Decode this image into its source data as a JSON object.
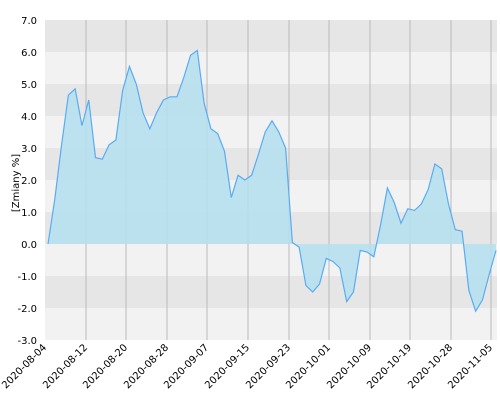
{
  "chart_data": {
    "type": "area",
    "title": "",
    "xlabel": "",
    "ylabel": "[Zmiany %]",
    "ylim": [
      -3.0,
      7.0
    ],
    "grid": true,
    "y_ticks": [
      "7.0",
      "6.0",
      "5.0",
      "4.0",
      "3.0",
      "2.0",
      "1.0",
      "0.0",
      "-1.0",
      "-2.0",
      "-3.0"
    ],
    "x_ticks": [
      "2020-08-04",
      "2020-08-12",
      "2020-08-20",
      "2020-08-28",
      "2020-09-07",
      "2020-09-15",
      "2020-09-23",
      "2020-10-01",
      "2020-10-09",
      "2020-10-19",
      "2020-10-28",
      "2020-11-05"
    ],
    "series": [
      {
        "values": [
          0.0,
          1.4,
          3.1,
          4.65,
          4.85,
          3.7,
          4.5,
          2.7,
          2.65,
          3.1,
          3.25,
          4.8,
          5.55,
          5.0,
          4.1,
          3.6,
          4.1,
          4.5,
          4.6,
          4.6,
          5.2,
          5.9,
          6.05,
          4.4,
          3.6,
          3.45,
          2.9,
          1.45,
          2.15,
          2.0,
          2.15,
          2.8,
          3.5,
          3.85,
          3.5,
          3.0,
          0.05,
          -0.1,
          -1.3,
          -1.5,
          -1.25,
          -0.45,
          -0.55,
          -0.75,
          -1.8,
          -1.5,
          -0.2,
          -0.25,
          -0.4,
          0.6,
          1.75,
          1.3,
          0.65,
          1.1,
          1.05,
          1.25,
          1.7,
          2.5,
          2.35,
          1.25,
          0.45,
          0.4,
          -1.45,
          -2.1,
          -1.75,
          -0.95,
          -0.2
        ]
      }
    ],
    "colors": {
      "line": "#5aabf0",
      "fill": "#b3dff0",
      "band_dark": "#e6e6e6",
      "band_light": "#f2f2f2",
      "gridline": "#b9b9b9"
    }
  }
}
